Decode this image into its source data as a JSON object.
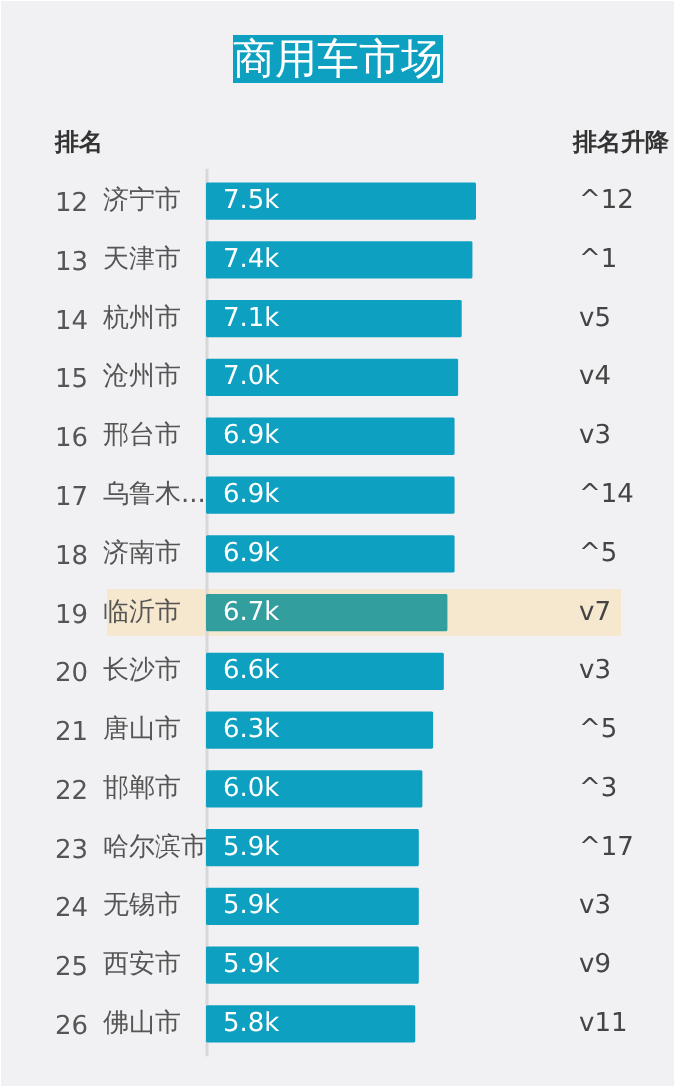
{
  "chart_data": {
    "type": "bar",
    "orientation": "horizontal",
    "title": "商用车市场",
    "categories": [
      "济宁市",
      "天津市",
      "杭州市",
      "沧州市",
      "邢台市",
      "乌鲁木...",
      "济南市",
      "临沂市",
      "长沙市",
      "唐山市",
      "邯郸市",
      "哈尔滨市",
      "无锡市",
      "西安市",
      "佛山市"
    ],
    "values": [
      7.5,
      7.4,
      7.1,
      7.0,
      6.9,
      6.9,
      6.9,
      6.7,
      6.6,
      6.3,
      6.0,
      5.9,
      5.9,
      5.9,
      5.8
    ],
    "colors": [
      "#0ea0c0",
      "#0ea0c0",
      "#0ea0c0",
      "#0ea0c0",
      "#0ea0c0",
      "#0ea0c0",
      "#0ea0c0",
      "#329e9e",
      "#0ea0c0",
      "#0ea0c0",
      "#0ea0c0",
      "#0ea0c0",
      "#0ea0c0",
      "#0ea0c0",
      "#0ea0c0"
    ],
    "value_labels": [
      "7.5k",
      "7.4k",
      "7.1k",
      "7.0k",
      "6.9k",
      "6.9k",
      "6.9k",
      "6.7k",
      "6.6k",
      "6.3k",
      "6.0k",
      "5.9k",
      "5.9k",
      "5.9k",
      "5.8k"
    ],
    "bands": [
      {
        "axis": "y",
        "from": "临沂市",
        "to": "临沂市",
        "color": "#f6e7cf"
      }
    ],
    "annotations": [
      "排名",
      "排名升降",
      "12",
      "^12",
      "13",
      "^1",
      "14",
      "v5",
      "15",
      "v4",
      "16",
      "v3",
      "17",
      "^14",
      "18",
      "^5",
      "19",
      "v7",
      "20",
      "v3",
      "21",
      "^5",
      "22",
      "^3",
      "23",
      "^17",
      "24",
      "v3",
      "25",
      "v9",
      "26",
      "v11"
    ]
  }
}
